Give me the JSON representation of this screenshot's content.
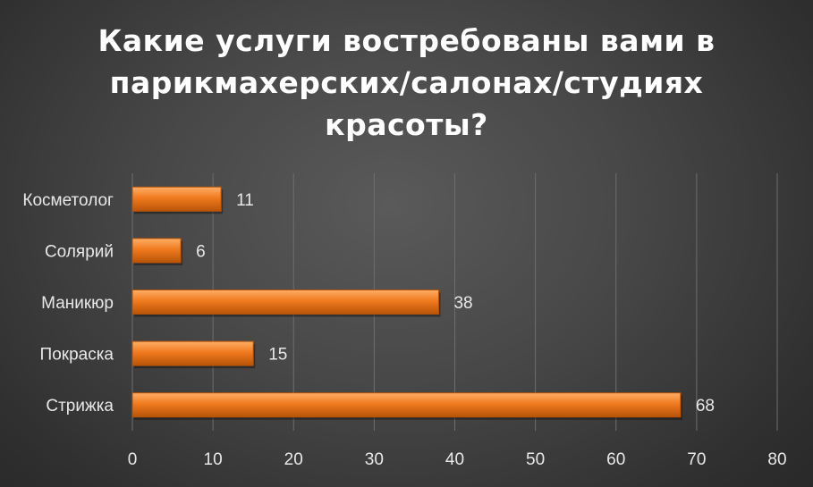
{
  "title_lines": [
    "Какие услуги востребованы вами в",
    "парикмахерских/салонах/студиях",
    "красоты?"
  ],
  "colors": {
    "bar": "#f07a1f",
    "bar_dark": "#b85408",
    "bar_light": "#ffae66",
    "grid": "#6e6e6e",
    "text": "#e8e8e8"
  },
  "chart_data": {
    "type": "bar",
    "orientation": "horizontal",
    "title": "Какие услуги востребованы вами в парикмахерских/салонах/студиях красоты?",
    "categories": [
      "Косметолог",
      "Солярий",
      "Маникюр",
      "Покраска",
      "Стрижка"
    ],
    "values": [
      11,
      6,
      38,
      15,
      68
    ],
    "xlim": [
      0,
      80
    ],
    "xticks": [
      0,
      10,
      20,
      30,
      40,
      50,
      60,
      70,
      80
    ],
    "xlabel": "",
    "ylabel": "",
    "grid": true,
    "legend": false,
    "data_labels": true
  }
}
